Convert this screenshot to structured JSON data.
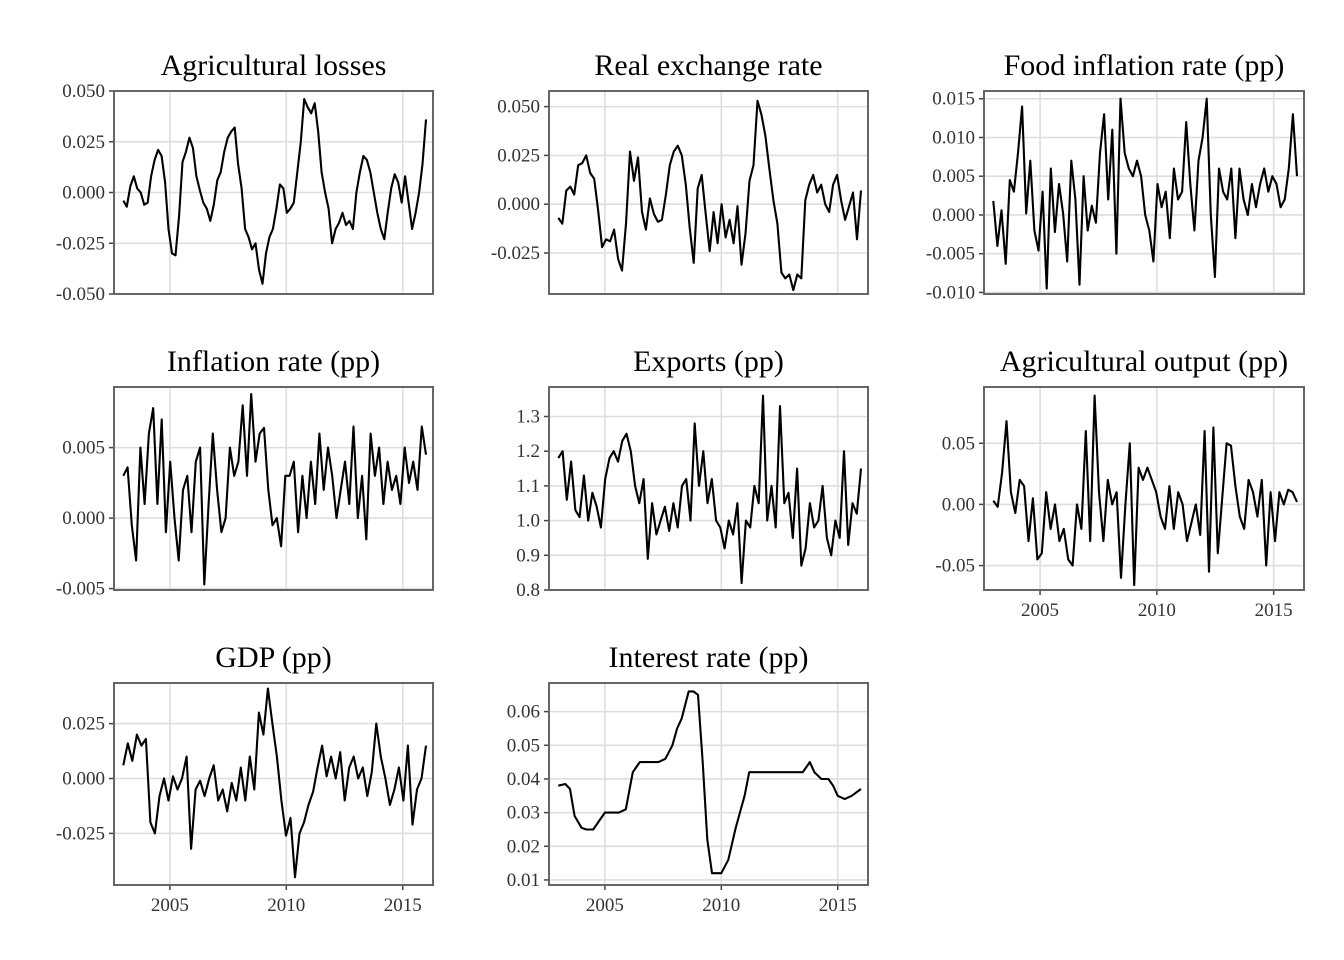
{
  "panels": [
    {
      "title": "Agricultural losses",
      "y_ticks": [
        -0.05,
        -0.025,
        0,
        0.025,
        0.05
      ],
      "y_tick_labels": [
        "-0.050",
        "-0.025",
        "0.000",
        "0.025",
        "0.050"
      ],
      "x_ticks": [
        2005,
        2010,
        2015
      ],
      "x_tick_labels": [],
      "chart_data": {
        "type": "line",
        "title": "Agricultural losses",
        "xlim": [
          2002.6,
          2016.3
        ],
        "ylim": [
          -0.05,
          0.05
        ],
        "x_start": 2003.0,
        "x_end": 2016.0,
        "values": [
          -0.004,
          -0.007,
          0.003,
          0.008,
          0.002,
          0.0,
          -0.006,
          -0.005,
          0.008,
          0.016,
          0.021,
          0.018,
          0.005,
          -0.018,
          -0.03,
          -0.031,
          -0.012,
          0.015,
          0.02,
          0.027,
          0.022,
          0.008,
          0.001,
          -0.005,
          -0.008,
          -0.014,
          -0.006,
          0.006,
          0.01,
          0.02,
          0.027,
          0.03,
          0.032,
          0.014,
          0.002,
          -0.018,
          -0.022,
          -0.028,
          -0.025,
          -0.038,
          -0.045,
          -0.03,
          -0.022,
          -0.018,
          -0.008,
          0.004,
          0.002,
          -0.01,
          -0.008,
          -0.005,
          0.01,
          0.025,
          0.046,
          0.042,
          0.039,
          0.044,
          0.03,
          0.01,
          0.0,
          -0.008,
          -0.025,
          -0.018,
          -0.015,
          -0.01,
          -0.016,
          -0.014,
          -0.018,
          0.0,
          0.01,
          0.018,
          0.016,
          0.01,
          0.0,
          -0.01,
          -0.018,
          -0.023,
          -0.01,
          0.002,
          0.009,
          0.005,
          -0.005,
          0.008,
          -0.005,
          -0.018,
          -0.01,
          0.0,
          0.014,
          0.036
        ]
      }
    },
    {
      "title": "Real exchange rate",
      "y_ticks": [
        -0.025,
        0,
        0.025,
        0.05
      ],
      "y_tick_labels": [
        "-0.025",
        "0.000",
        "0.025",
        "0.050"
      ],
      "x_ticks": [
        2005,
        2010,
        2015
      ],
      "x_tick_labels": [],
      "chart_data": {
        "type": "line",
        "title": "Real exchange rate",
        "xlim": [
          2002.6,
          2016.3
        ],
        "ylim": [
          -0.046,
          0.058
        ],
        "x_start": 2003.0,
        "x_end": 2016.0,
        "values": [
          -0.007,
          -0.01,
          0.007,
          0.009,
          0.005,
          0.02,
          0.021,
          0.025,
          0.016,
          0.013,
          -0.003,
          -0.022,
          -0.018,
          -0.019,
          -0.013,
          -0.028,
          -0.034,
          -0.01,
          0.027,
          0.012,
          0.024,
          -0.004,
          -0.013,
          0.003,
          -0.005,
          -0.009,
          -0.008,
          0.005,
          0.02,
          0.027,
          0.03,
          0.025,
          0.01,
          -0.012,
          -0.03,
          0.008,
          0.015,
          -0.005,
          -0.024,
          -0.004,
          -0.02,
          0.0,
          -0.017,
          -0.008,
          -0.02,
          -0.001,
          -0.031,
          -0.015,
          0.012,
          0.02,
          0.053,
          0.046,
          0.035,
          0.018,
          0.002,
          -0.01,
          -0.035,
          -0.038,
          -0.036,
          -0.044,
          -0.036,
          -0.038,
          0.002,
          0.01,
          0.015,
          0.006,
          0.01,
          0.0,
          -0.004,
          0.01,
          0.015,
          0.002,
          -0.008,
          -0.001,
          0.006,
          -0.018,
          0.007
        ]
      }
    },
    {
      "title": "Food inflation rate (pp)",
      "y_ticks": [
        -0.01,
        -0.005,
        0,
        0.005,
        0.01,
        0.015
      ],
      "y_tick_labels": [
        "-0.010",
        "-0.005",
        "0.000",
        "0.005",
        "0.010",
        "0.015"
      ],
      "x_ticks": [
        2005,
        2010,
        2015
      ],
      "x_tick_labels": [],
      "chart_data": {
        "type": "line",
        "title": "Food inflation rate (pp)",
        "xlim": [
          2002.6,
          2016.3
        ],
        "ylim": [
          -0.0102,
          0.016
        ],
        "x_start": 2003.0,
        "x_end": 2016.0,
        "values": [
          0.0018,
          -0.004,
          0.0006,
          -0.0063,
          0.0045,
          0.003,
          0.008,
          0.014,
          0.0002,
          0.007,
          -0.002,
          -0.0046,
          0.003,
          -0.0095,
          0.006,
          -0.0022,
          0.004,
          0.0002,
          -0.006,
          0.007,
          0.002,
          -0.009,
          0.005,
          -0.002,
          0.0012,
          -0.001,
          0.008,
          0.013,
          0.002,
          0.011,
          -0.005,
          0.015,
          0.008,
          0.006,
          0.005,
          0.007,
          0.005,
          0.0,
          -0.002,
          -0.006,
          0.004,
          0.001,
          0.003,
          -0.003,
          0.006,
          0.002,
          0.003,
          0.012,
          0.004,
          -0.002,
          0.007,
          0.01,
          0.015,
          0.0,
          -0.008,
          0.006,
          0.003,
          0.002,
          0.006,
          -0.003,
          0.006,
          0.002,
          0.0,
          0.004,
          0.001,
          0.004,
          0.006,
          0.003,
          0.005,
          0.004,
          0.001,
          0.002,
          0.006,
          0.013,
          0.005
        ]
      }
    },
    {
      "title": "Inflation rate (pp)",
      "y_ticks": [
        -0.005,
        0,
        0.005
      ],
      "y_tick_labels": [
        "-0.005",
        "0.000",
        "0.005"
      ],
      "x_ticks": [
        2005,
        2010,
        2015
      ],
      "x_tick_labels": [],
      "chart_data": {
        "type": "line",
        "title": "Inflation rate (pp)",
        "xlim": [
          2002.6,
          2016.3
        ],
        "ylim": [
          -0.0051,
          0.0093
        ],
        "x_start": 2003.0,
        "x_end": 2016.0,
        "values": [
          0.003,
          0.0036,
          -0.0005,
          -0.003,
          0.005,
          0.001,
          0.006,
          0.0078,
          0.001,
          0.007,
          -0.001,
          0.004,
          0.0,
          -0.003,
          0.002,
          0.003,
          -0.001,
          0.004,
          0.005,
          -0.0047,
          0.001,
          0.006,
          0.002,
          -0.001,
          0.0,
          0.005,
          0.003,
          0.004,
          0.008,
          0.003,
          0.0088,
          0.004,
          0.006,
          0.0064,
          0.002,
          -0.0005,
          0.0,
          -0.002,
          0.003,
          0.003,
          0.004,
          -0.001,
          0.003,
          0.0,
          0.004,
          0.001,
          0.006,
          0.002,
          0.005,
          0.003,
          0.0,
          0.002,
          0.004,
          0.001,
          0.0065,
          0.0,
          0.003,
          -0.0015,
          0.006,
          0.003,
          0.005,
          0.001,
          0.004,
          0.002,
          0.003,
          0.001,
          0.005,
          0.0025,
          0.004,
          0.002,
          0.0065,
          0.0045
        ]
      }
    },
    {
      "title": "Exports (pp)",
      "y_ticks": [
        0.8,
        0.9,
        1.0,
        1.1,
        1.2,
        1.3
      ],
      "y_tick_labels": [
        "0.8",
        "0.9",
        "1.0",
        "1.1",
        "1.2",
        "1.3"
      ],
      "x_ticks": [
        2005,
        2010,
        2015
      ],
      "x_tick_labels": [],
      "chart_data": {
        "type": "line",
        "title": "Exports (pp)",
        "xlim": [
          2002.6,
          2016.3
        ],
        "ylim": [
          0.8,
          1.385
        ],
        "x_start": 2003.0,
        "x_end": 2016.0,
        "values": [
          1.18,
          1.2,
          1.06,
          1.17,
          1.03,
          1.01,
          1.13,
          1.0,
          1.08,
          1.04,
          0.98,
          1.12,
          1.18,
          1.2,
          1.17,
          1.23,
          1.25,
          1.2,
          1.1,
          1.05,
          1.12,
          0.89,
          1.05,
          0.96,
          1.0,
          1.04,
          0.97,
          1.05,
          0.98,
          1.1,
          1.12,
          1.0,
          1.28,
          1.1,
          1.2,
          1.05,
          1.12,
          1.0,
          0.98,
          0.92,
          1.0,
          0.96,
          1.05,
          0.82,
          1.0,
          0.98,
          1.1,
          1.05,
          1.36,
          1.0,
          1.1,
          0.98,
          1.33,
          1.05,
          1.08,
          0.95,
          1.15,
          0.87,
          0.92,
          1.05,
          0.98,
          1.0,
          1.1,
          0.95,
          0.9,
          1.0,
          0.95,
          1.2,
          0.93,
          1.05,
          1.02,
          1.15
        ]
      }
    },
    {
      "title": "Agricultural output (pp)",
      "y_ticks": [
        -0.05,
        0,
        0.05
      ],
      "y_tick_labels": [
        "-0.05",
        "0.00",
        "0.05"
      ],
      "x_ticks": [
        2005,
        2010,
        2015
      ],
      "x_tick_labels": [
        "2005",
        "2010",
        "2015"
      ],
      "chart_data": {
        "type": "line",
        "title": "Agricultural output (pp)",
        "xlim": [
          2002.6,
          2016.3
        ],
        "ylim": [
          -0.07,
          0.096
        ],
        "x_start": 2003.0,
        "x_end": 2016.0,
        "values": [
          0.003,
          -0.002,
          0.026,
          0.068,
          0.01,
          -0.007,
          0.02,
          0.015,
          -0.03,
          0.005,
          -0.045,
          -0.04,
          0.01,
          -0.02,
          0.0,
          -0.03,
          -0.02,
          -0.045,
          -0.05,
          0.0,
          -0.02,
          0.06,
          -0.03,
          0.089,
          0.01,
          -0.03,
          0.02,
          0.0,
          0.01,
          -0.06,
          0.0,
          0.05,
          -0.066,
          0.03,
          0.02,
          0.03,
          0.02,
          0.01,
          -0.01,
          -0.02,
          0.015,
          -0.02,
          0.01,
          0.0,
          -0.03,
          -0.015,
          0.0,
          -0.025,
          0.06,
          -0.055,
          0.063,
          -0.04,
          0.005,
          0.05,
          0.048,
          0.015,
          -0.01,
          -0.02,
          0.02,
          0.01,
          -0.01,
          0.02,
          -0.05,
          0.01,
          -0.03,
          0.01,
          0.0,
          0.012,
          0.01,
          0.002
        ]
      }
    },
    {
      "title": "GDP (pp)",
      "y_ticks": [
        -0.025,
        0,
        0.025
      ],
      "y_tick_labels": [
        "-0.025",
        "0.000",
        "0.025"
      ],
      "x_ticks": [
        2005,
        2010,
        2015
      ],
      "x_tick_labels": [
        "2005",
        "2010",
        "2015"
      ],
      "chart_data": {
        "type": "line",
        "title": "GDP (pp)",
        "xlim": [
          2002.6,
          2016.3
        ],
        "ylim": [
          -0.0485,
          0.0435
        ],
        "x_start": 2003.0,
        "x_end": 2016.0,
        "values": [
          0.006,
          0.016,
          0.008,
          0.02,
          0.015,
          0.018,
          -0.02,
          -0.025,
          -0.008,
          0.0,
          -0.01,
          0.001,
          -0.005,
          0.0,
          0.01,
          -0.032,
          -0.005,
          -0.001,
          -0.008,
          0.0,
          0.006,
          -0.01,
          -0.005,
          -0.015,
          -0.002,
          -0.01,
          0.005,
          -0.01,
          0.01,
          -0.005,
          0.03,
          0.02,
          0.041,
          0.025,
          0.01,
          -0.01,
          -0.026,
          -0.018,
          -0.045,
          -0.025,
          -0.02,
          -0.012,
          -0.006,
          0.005,
          0.015,
          0.001,
          0.01,
          0.0,
          0.012,
          -0.01,
          0.005,
          0.01,
          0.0,
          0.005,
          -0.008,
          0.003,
          0.025,
          0.01,
          0.0,
          -0.012,
          -0.005,
          0.005,
          -0.01,
          0.015,
          -0.021,
          -0.005,
          0.0,
          0.015
        ]
      }
    },
    {
      "title": "Interest rate (pp)",
      "y_ticks": [
        0.01,
        0.02,
        0.03,
        0.04,
        0.05,
        0.06
      ],
      "y_tick_labels": [
        "0.01",
        "0.02",
        "0.03",
        "0.04",
        "0.05",
        "0.06"
      ],
      "x_ticks": [
        2005,
        2010,
        2015
      ],
      "x_tick_labels": [
        "2005",
        "2010",
        "2015"
      ],
      "chart_data": {
        "type": "line",
        "title": "Interest rate (pp)",
        "xlim": [
          2002.6,
          2016.3
        ],
        "ylim": [
          0.0085,
          0.0685
        ],
        "x": [
          2003.0,
          2003.3,
          2003.5,
          2003.7,
          2004.0,
          2004.2,
          2004.5,
          2004.8,
          2005.0,
          2005.3,
          2005.6,
          2005.9,
          2006.2,
          2006.5,
          2006.8,
          2007.0,
          2007.3,
          2007.6,
          2007.9,
          2008.1,
          2008.3,
          2008.6,
          2008.8,
          2009.0,
          2009.2,
          2009.4,
          2009.6,
          2009.8,
          2010.0,
          2010.3,
          2010.6,
          2010.8,
          2011.0,
          2011.2,
          2011.5,
          2012.0,
          2012.5,
          2013.0,
          2013.5,
          2013.8,
          2014.0,
          2014.3,
          2014.6,
          2014.8,
          2015.0,
          2015.3,
          2015.6,
          2015.8,
          2016.0
        ],
        "values": [
          0.038,
          0.0385,
          0.037,
          0.029,
          0.0255,
          0.025,
          0.025,
          0.028,
          0.03,
          0.03,
          0.03,
          0.031,
          0.042,
          0.045,
          0.045,
          0.045,
          0.045,
          0.046,
          0.05,
          0.055,
          0.058,
          0.066,
          0.066,
          0.065,
          0.045,
          0.022,
          0.012,
          0.012,
          0.012,
          0.016,
          0.025,
          0.03,
          0.035,
          0.042,
          0.042,
          0.042,
          0.042,
          0.042,
          0.042,
          0.045,
          0.042,
          0.04,
          0.04,
          0.038,
          0.035,
          0.034,
          0.035,
          0.036,
          0.037
        ]
      }
    }
  ]
}
